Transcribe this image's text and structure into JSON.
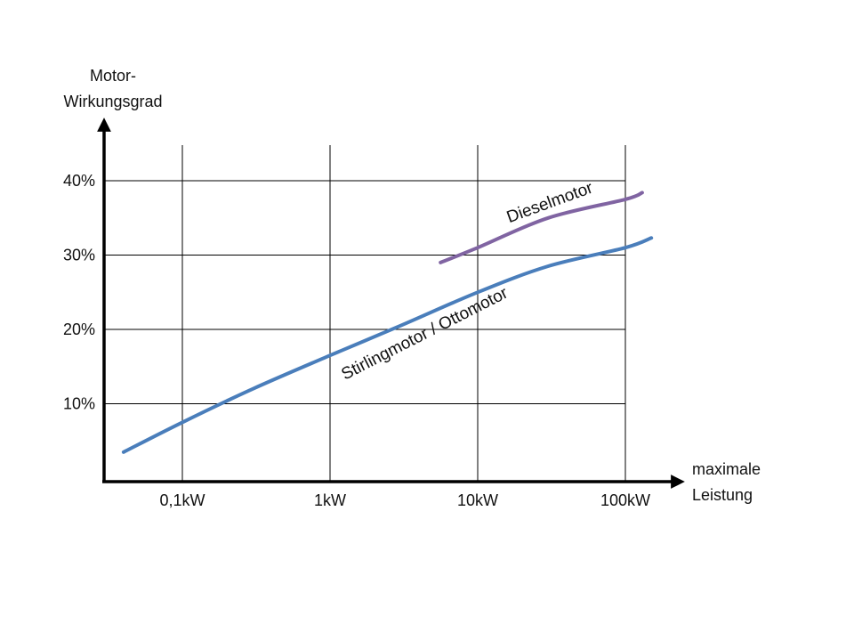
{
  "chart_data": {
    "type": "line",
    "ylabel_lines": [
      "Motor-",
      "Wirkungsgrad"
    ],
    "xlabel_lines": [
      "maximale",
      "Leistung"
    ],
    "x_scale": "log",
    "x_ticks": [
      {
        "value": 0.1,
        "label": "0,1kW"
      },
      {
        "value": 1,
        "label": "1kW"
      },
      {
        "value": 10,
        "label": "10kW"
      },
      {
        "value": 100,
        "label": "100kW"
      }
    ],
    "y_ticks": [
      {
        "value": 10,
        "label": "10%"
      },
      {
        "value": 20,
        "label": "20%"
      },
      {
        "value": 30,
        "label": "30%"
      },
      {
        "value": 40,
        "label": "40%"
      }
    ],
    "xlim": [
      0.04,
      500
    ],
    "ylim": [
      0,
      45
    ],
    "grid": true,
    "colors": {
      "stirling": "#4a7ebb",
      "diesel": "#8064a2",
      "axis": "#000000",
      "grid": "#000000"
    },
    "series": [
      {
        "name": "Stirlingmotor / Ottomotor",
        "x": [
          0.04,
          0.1,
          0.3,
          1,
          3,
          10,
          30,
          100,
          150
        ],
        "y": [
          3.5,
          7.5,
          12,
          16.5,
          20.5,
          25,
          28.5,
          31,
          32.3
        ]
      },
      {
        "name": "Dieselmotor",
        "x": [
          5.6,
          10,
          30,
          100,
          130
        ],
        "y": [
          29,
          31,
          35,
          37.5,
          38.4
        ]
      }
    ]
  }
}
